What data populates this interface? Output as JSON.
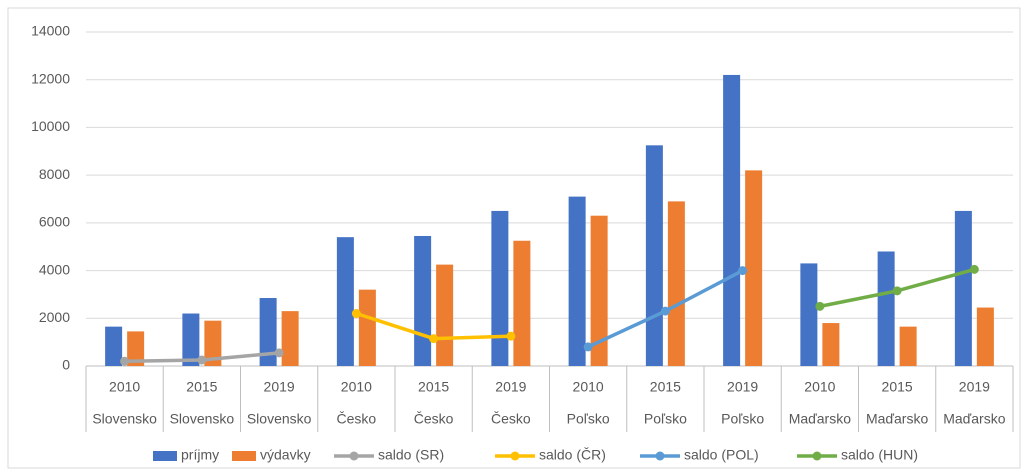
{
  "chart_data": {
    "type": "bar_line",
    "categories": [
      "2010",
      "2015",
      "2019",
      "2010",
      "2015",
      "2019",
      "2010",
      "2015",
      "2019",
      "2010",
      "2015",
      "2019"
    ],
    "category_groups": [
      "Slovensko",
      "Slovensko",
      "Slovensko",
      "Česko",
      "Česko",
      "Česko",
      "Poľsko",
      "Poľsko",
      "Poľsko",
      "Maďarsko",
      "Maďarsko",
      "Maďarsko"
    ],
    "series": [
      {
        "name": "príjmy",
        "kind": "bar",
        "color": "#4472c4",
        "values": [
          1650,
          2200,
          2850,
          5400,
          5450,
          6500,
          7100,
          9250,
          12200,
          4300,
          4800,
          6500
        ]
      },
      {
        "name": "výdavky",
        "kind": "bar",
        "color": "#ed7d31",
        "values": [
          1450,
          1900,
          2300,
          3200,
          4250,
          5250,
          6300,
          6900,
          8200,
          1800,
          1650,
          2450
        ]
      },
      {
        "name": "saldo (SR)",
        "kind": "line",
        "color": "#a5a5a5",
        "values": [
          200,
          250,
          550,
          null,
          null,
          null,
          null,
          null,
          null,
          null,
          null,
          null
        ]
      },
      {
        "name": "saldo (ČR)",
        "kind": "line",
        "color": "#ffc000",
        "values": [
          null,
          null,
          null,
          2200,
          1150,
          1250,
          null,
          null,
          null,
          null,
          null,
          null
        ]
      },
      {
        "name": "saldo (POL)",
        "kind": "line",
        "color": "#5b9bd5",
        "values": [
          null,
          null,
          null,
          null,
          null,
          null,
          800,
          2300,
          4000,
          null,
          null,
          null
        ]
      },
      {
        "name": "saldo (HUN)",
        "kind": "line",
        "color": "#70ad47",
        "values": [
          null,
          null,
          null,
          null,
          null,
          null,
          null,
          null,
          null,
          2500,
          3150,
          4050
        ]
      }
    ],
    "ylim": [
      0,
      14000
    ],
    "yticks": [
      0,
      2000,
      4000,
      6000,
      8000,
      10000,
      12000,
      14000
    ],
    "grid": true,
    "legend": "bottom"
  }
}
